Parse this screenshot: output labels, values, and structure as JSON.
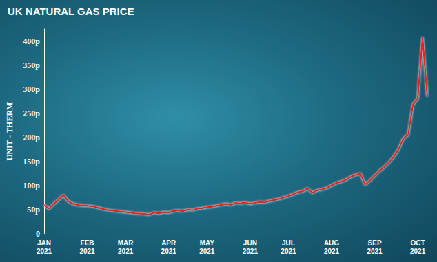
{
  "chart_data": {
    "type": "line",
    "title": "UK NATURAL GAS PRICE",
    "y_label": "UNIT - THERM",
    "categories": [
      "JAN\n2021",
      null,
      null,
      null,
      null,
      null,
      null,
      null,
      null,
      "FEB\n2021",
      null,
      null,
      null,
      null,
      null,
      null,
      null,
      "MAR\n2021",
      null,
      null,
      null,
      null,
      null,
      null,
      null,
      null,
      "APR\n2021",
      null,
      null,
      null,
      null,
      null,
      null,
      null,
      "MAY\n2021",
      null,
      null,
      null,
      null,
      null,
      null,
      null,
      null,
      "JUN\n2021",
      null,
      null,
      null,
      null,
      null,
      null,
      null,
      "JUL\n2021",
      null,
      null,
      null,
      null,
      null,
      null,
      null,
      null,
      "AUG\n2021",
      null,
      null,
      null,
      null,
      null,
      null,
      null,
      null,
      "SEP\n2021",
      null,
      null,
      null,
      null,
      null,
      null,
      null,
      null,
      "OCT\n2021",
      null,
      null
    ],
    "values": [
      60,
      52,
      62,
      70,
      80,
      68,
      62,
      60,
      58,
      58,
      57,
      55,
      52,
      50,
      48,
      47,
      46,
      45,
      44,
      42,
      42,
      41,
      40,
      44,
      42,
      45,
      44,
      47,
      48,
      47,
      50,
      49,
      52,
      53,
      55,
      56,
      58,
      60,
      62,
      60,
      64,
      63,
      65,
      62,
      64,
      66,
      65,
      68,
      70,
      72,
      75,
      78,
      82,
      86,
      88,
      94,
      85,
      90,
      92,
      95,
      100,
      105,
      108,
      112,
      118,
      122,
      125,
      102,
      110,
      120,
      130,
      138,
      148,
      160,
      175,
      198,
      205,
      268,
      280,
      407,
      285
    ],
    "color": "#e8241c",
    "line_style": "solid",
    "ylim": [
      0,
      425
    ],
    "yticks": [
      {
        "value": 0,
        "label": "0"
      },
      {
        "value": 50,
        "label": "50p"
      },
      {
        "value": 100,
        "label": "100p"
      },
      {
        "value": 150,
        "label": "150p"
      },
      {
        "value": 200,
        "label": "200p"
      },
      {
        "value": 250,
        "label": "250p"
      },
      {
        "value": 300,
        "label": "300p"
      },
      {
        "value": 350,
        "label": "350p"
      },
      {
        "value": 400,
        "label": "400p"
      }
    ],
    "grid": true
  }
}
